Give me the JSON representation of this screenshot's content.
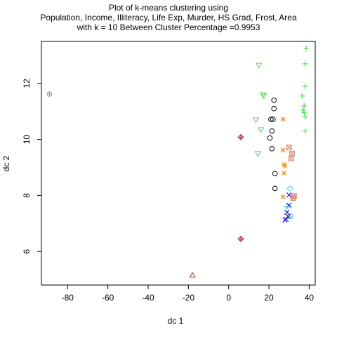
{
  "chart_data": {
    "type": "scatter",
    "title_lines": [
      "Plot of k-means clustering using",
      "Population, Income, Illiteracy, Life Exp, Murder, HS Grad, Frost, Area",
      "with  k = 10 Between Cluster Percentage =0.9953"
    ],
    "xlabel": "dc 1",
    "ylabel": "dc 2",
    "xlim": [
      -93,
      43
    ],
    "ylim": [
      4.8,
      13.5
    ],
    "x_ticks": [
      -80,
      -60,
      -40,
      -20,
      0,
      20,
      40
    ],
    "y_ticks": [
      6,
      8,
      10,
      12
    ],
    "grid": false,
    "legend": "none",
    "series": [
      {
        "symbol": "circle-plus",
        "color": "#9e9e9e",
        "points": [
          [
            -89,
            11.62
          ]
        ]
      },
      {
        "symbol": "triangle",
        "color": "#e3242b",
        "points": [
          [
            -18,
            5.15
          ]
        ]
      },
      {
        "symbol": "diamond-plus",
        "color": "#b22234",
        "points": [
          [
            6,
            10.08
          ],
          [
            6,
            6.45
          ]
        ]
      },
      {
        "symbol": "triangle-down",
        "color": "#66cc66",
        "points": [
          [
            15,
            12.65
          ],
          [
            17,
            11.6
          ],
          [
            17.5,
            11.55
          ],
          [
            13.5,
            10.7
          ],
          [
            16,
            10.35
          ],
          [
            14.5,
            9.5
          ]
        ]
      },
      {
        "symbol": "circle",
        "color": "#000000",
        "points": [
          [
            22.5,
            11.4
          ],
          [
            22.5,
            11.1
          ],
          [
            21,
            10.72
          ],
          [
            22,
            10.72
          ],
          [
            21.5,
            10.3
          ],
          [
            20.5,
            10.05
          ],
          [
            21.5,
            9.67
          ],
          [
            23,
            8.78
          ],
          [
            23,
            8.25
          ]
        ]
      },
      {
        "symbol": "star",
        "color": "#e69a2e",
        "points": [
          [
            27,
            10.72
          ],
          [
            27,
            9.62
          ],
          [
            27.5,
            9.1
          ],
          [
            28,
            9.05
          ],
          [
            27.5,
            8.8
          ],
          [
            27,
            7.95
          ]
        ]
      },
      {
        "symbol": "square-cross",
        "color": "#e07a5f",
        "points": [
          [
            30,
            9.72
          ],
          [
            31.5,
            9.5
          ],
          [
            31,
            9.32
          ],
          [
            32.5,
            7.98
          ],
          [
            32,
            7.9
          ]
        ]
      },
      {
        "symbol": "diamond",
        "color": "#33ddee",
        "points": [
          [
            30.5,
            8.25
          ],
          [
            29,
            7.6
          ]
        ]
      },
      {
        "symbol": "square-plus",
        "color": "#88ccbb",
        "points": [
          [
            30.5,
            7.25
          ]
        ]
      },
      {
        "symbol": "x",
        "color": "#0000dd",
        "points": [
          [
            30,
            8.02
          ],
          [
            30,
            7.65
          ],
          [
            29,
            7.4
          ],
          [
            29.5,
            7.25
          ],
          [
            28.5,
            7.15
          ],
          [
            28,
            7.12
          ]
        ]
      },
      {
        "symbol": "plus",
        "color": "#22dd22",
        "points": [
          [
            38.5,
            13.25
          ],
          [
            38,
            12.7
          ],
          [
            38,
            11.9
          ],
          [
            36.5,
            11.55
          ],
          [
            37.5,
            11.2
          ],
          [
            37,
            11.05
          ],
          [
            37.5,
            10.95
          ],
          [
            38,
            10.8
          ],
          [
            38,
            10.3
          ]
        ]
      }
    ]
  }
}
